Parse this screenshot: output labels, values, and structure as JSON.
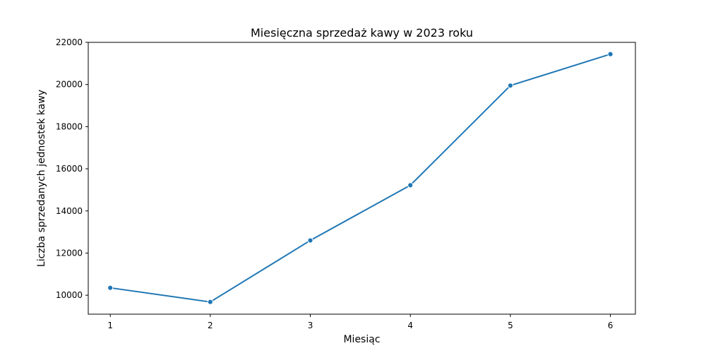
{
  "chart_data": {
    "type": "line",
    "title": "Miesięczna sprzedaż kawy w 2023 roku",
    "xlabel": "Miesiąc",
    "ylabel": "Liczba sprzedanych jednostek kawy",
    "x": [
      1,
      2,
      3,
      4,
      5,
      6
    ],
    "x_ticks": [
      "1",
      "2",
      "3",
      "4",
      "5",
      "6"
    ],
    "y_ticks": [
      "10000",
      "12000",
      "14000",
      "16000",
      "18000",
      "20000",
      "22000"
    ],
    "xlim": [
      0.78,
      6.25
    ],
    "ylim": [
      9100,
      22000
    ],
    "series": [
      {
        "values": [
          10350,
          9680,
          12600,
          15220,
          19950,
          21440
        ]
      }
    ],
    "markers": true,
    "grid": false,
    "colors": {
      "line": "#1f77b4",
      "axis": "#000000",
      "background": "#ffffff"
    }
  }
}
